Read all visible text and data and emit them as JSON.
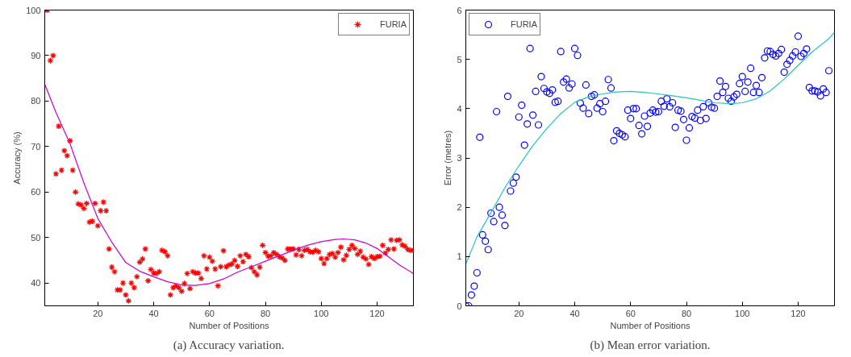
{
  "chart_data": [
    {
      "type": "scatter",
      "xlabel": "Number of Positions",
      "ylabel": "Accuracy (%)",
      "annotations": [
        "(a) Accuracy variation."
      ],
      "xlim": [
        1,
        133
      ],
      "ylim": [
        35,
        100
      ],
      "xticks": [
        20,
        40,
        60,
        80,
        100,
        120
      ],
      "yticks": [
        40,
        50,
        60,
        70,
        80,
        90,
        100
      ],
      "grid": false,
      "legend": "top right",
      "series": [
        {
          "name": "FURIA",
          "marker": "cross",
          "color": "#ff0000",
          "x": [
            1,
            2,
            3,
            4,
            5,
            6,
            7,
            8,
            9,
            10,
            11,
            12,
            13,
            14,
            15,
            16,
            17,
            18,
            19,
            20,
            21,
            22,
            23,
            24,
            25,
            26,
            27,
            28,
            29,
            30,
            31,
            32,
            33,
            34,
            35,
            36,
            37,
            38,
            39,
            40,
            41,
            42,
            43,
            44,
            45,
            46,
            47,
            48,
            49,
            50,
            51,
            52,
            53,
            54,
            55,
            56,
            57,
            58,
            59,
            60,
            61,
            62,
            63,
            64,
            65,
            66,
            67,
            68,
            69,
            70,
            71,
            72,
            73,
            74,
            75,
            76,
            77,
            78,
            79,
            80,
            81,
            82,
            83,
            84,
            85,
            86,
            87,
            88,
            89,
            90,
            91,
            92,
            93,
            94,
            95,
            96,
            97,
            98,
            99,
            100,
            101,
            102,
            103,
            104,
            105,
            106,
            107,
            108,
            109,
            110,
            111,
            112,
            113,
            114,
            115,
            116,
            117,
            118,
            119,
            120,
            121,
            122,
            123,
            124,
            125,
            126,
            127,
            128,
            129,
            130,
            131,
            132,
            133
          ],
          "values": [
            100,
            100,
            88.9,
            90,
            64,
            74.5,
            64.8,
            69.1,
            68,
            71.3,
            64.8,
            60,
            57.4,
            57.2,
            56.4,
            57.5,
            53.4,
            53.6,
            57.5,
            52.6,
            55.9,
            57.8,
            55.9,
            47.5,
            43.5,
            42.5,
            38.5,
            38.5,
            40,
            37.4,
            36.1,
            40,
            39,
            41.4,
            44.6,
            45.3,
            47.5,
            40.5,
            43,
            42.2,
            42.1,
            42.5,
            47.2,
            46.9,
            46,
            37.4,
            39,
            39.4,
            39,
            38.2,
            39.9,
            42.1,
            38.8,
            42.5,
            42.2,
            42.2,
            41,
            46,
            43.1,
            45.7,
            44.8,
            43.1,
            39.4,
            43.6,
            47.1,
            43.6,
            44,
            44.2,
            45,
            43.7,
            46,
            44.7,
            46.3,
            45.8,
            43.4,
            42.5,
            41.8,
            43.5,
            48.3,
            46.7,
            45.9,
            46,
            46.7,
            46.3,
            45.8,
            45.5,
            45,
            47.5,
            47.5,
            47.5,
            46.2,
            47.4,
            46,
            47.2,
            47.4,
            46.9,
            46.8,
            47.2,
            46.9,
            45.4,
            44.3,
            45.4,
            46.3,
            46.5,
            45.7,
            46.7,
            47.9,
            45.1,
            46.1,
            47.4,
            48.3,
            47.6,
            46.3,
            47,
            45.7,
            45.3,
            44.1,
            45.8,
            45.4,
            45.8,
            45.9,
            48.3,
            46.6,
            47.4,
            49.5,
            47.5,
            49.4,
            49.5,
            48.4,
            48.1,
            47.4,
            47.2,
            47.2
          ]
        },
        {
          "type": "line",
          "marker": "none",
          "line_style": "solid",
          "color": "#cc00cc",
          "x": [
            1,
            5,
            10,
            15,
            20,
            25,
            30,
            35,
            40,
            45,
            50,
            55,
            60,
            65,
            70,
            75,
            80,
            85,
            90,
            95,
            100,
            105,
            108,
            112,
            116,
            120,
            124,
            128,
            133
          ],
          "values": [
            83.7,
            77.5,
            70.7,
            62,
            54.2,
            49,
            44.5,
            42.6,
            41.4,
            40.3,
            39.6,
            39.5,
            39.9,
            40.9,
            42.4,
            43.6,
            44.8,
            46,
            47.2,
            48.3,
            49.1,
            49.6,
            49.7,
            49.5,
            48.8,
            47.6,
            45.8,
            44,
            42.1
          ]
        }
      ]
    },
    {
      "type": "scatter",
      "xlabel": "Number of Positions",
      "ylabel": "Error (metres)",
      "annotations": [
        "(b) Mean error variation."
      ],
      "xlim": [
        1,
        133
      ],
      "ylim": [
        0,
        6
      ],
      "xticks": [
        20,
        40,
        60,
        80,
        100,
        120
      ],
      "yticks": [
        0,
        1,
        2,
        3,
        4,
        5,
        6
      ],
      "grid": false,
      "legend": "top left",
      "series": [
        {
          "name": "FURIA",
          "marker": "circle",
          "color": "#0000ff",
          "x": [
            1,
            2,
            3,
            4,
            5,
            6,
            7,
            8,
            9,
            10,
            11,
            12,
            13,
            14,
            15,
            16,
            17,
            18,
            19,
            20,
            21,
            22,
            23,
            24,
            25,
            26,
            27,
            28,
            29,
            30,
            31,
            32,
            33,
            34,
            35,
            36,
            37,
            38,
            39,
            40,
            41,
            42,
            43,
            44,
            45,
            46,
            47,
            48,
            49,
            50,
            51,
            52,
            53,
            54,
            55,
            56,
            57,
            58,
            59,
            60,
            61,
            62,
            63,
            64,
            65,
            66,
            67,
            68,
            69,
            70,
            71,
            72,
            73,
            74,
            75,
            76,
            77,
            78,
            79,
            80,
            81,
            82,
            83,
            84,
            85,
            86,
            87,
            88,
            89,
            90,
            91,
            92,
            93,
            94,
            95,
            96,
            97,
            98,
            99,
            100,
            101,
            102,
            103,
            104,
            105,
            106,
            107,
            108,
            109,
            110,
            111,
            112,
            113,
            114,
            115,
            116,
            117,
            118,
            119,
            120,
            121,
            122,
            123,
            124,
            125,
            126,
            127,
            128,
            129,
            130,
            131
          ],
          "values": [
            0,
            0,
            0.22,
            0.4,
            0.67,
            3.42,
            1.44,
            1.31,
            1.14,
            1.88,
            1.71,
            3.94,
            2.0,
            1.84,
            1.63,
            4.25,
            2.33,
            2.49,
            2.61,
            3.83,
            4.07,
            3.26,
            3.69,
            5.22,
            3.87,
            4.35,
            3.67,
            4.65,
            4.41,
            4.34,
            4.31,
            4.38,
            4.13,
            4.15,
            5.16,
            4.54,
            4.6,
            4.42,
            4.5,
            5.22,
            5.08,
            4.11,
            4.01,
            4.48,
            3.9,
            4.25,
            4.28,
            4.01,
            4.1,
            3.94,
            4.15,
            4.59,
            4.42,
            3.35,
            3.55,
            3.5,
            3.47,
            3.43,
            3.97,
            3.8,
            4.0,
            4.0,
            3.66,
            3.49,
            3.85,
            3.64,
            3.91,
            3.97,
            3.93,
            3.94,
            4.15,
            4.05,
            4.2,
            4.04,
            4.12,
            3.62,
            3.97,
            3.95,
            3.78,
            3.36,
            3.61,
            3.84,
            3.81,
            3.97,
            3.76,
            4.04,
            3.8,
            4.12,
            4.03,
            4.01,
            4.25,
            4.56,
            4.33,
            4.45,
            4.21,
            4.15,
            4.24,
            4.29,
            4.51,
            4.65,
            4.35,
            4.54,
            4.82,
            4.33,
            4.47,
            4.33,
            4.63,
            5.03,
            5.17,
            5.16,
            5.1,
            5.07,
            5.12,
            5.2,
            4.74,
            4.9,
            4.98,
            5.07,
            5.15,
            5.47,
            5.06,
            5.12,
            5.21,
            4.43,
            4.36,
            4.36,
            4.34,
            4.26,
            4.4,
            4.33,
            4.77
          ]
        },
        {
          "type": "line",
          "marker": "none",
          "line_style": "solid",
          "color": "#22c4c4",
          "x": [
            1,
            5,
            10,
            15,
            20,
            25,
            30,
            35,
            40,
            45,
            50,
            55,
            60,
            65,
            70,
            75,
            80,
            85,
            90,
            96,
            100,
            105,
            110,
            115,
            120,
            125,
            131,
            133
          ],
          "values": [
            0.85,
            1.4,
            1.89,
            2.4,
            2.84,
            3.25,
            3.6,
            3.9,
            4.13,
            4.24,
            4.3,
            4.34,
            4.35,
            4.33,
            4.3,
            4.26,
            4.22,
            4.17,
            4.12,
            4.1,
            4.12,
            4.2,
            4.36,
            4.6,
            4.88,
            5.15,
            5.42,
            5.55
          ]
        }
      ]
    }
  ]
}
